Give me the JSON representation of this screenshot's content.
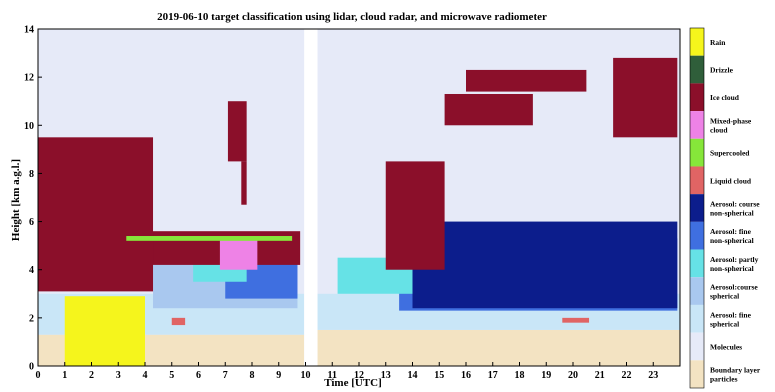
{
  "chart_data": {
    "type": "heatmap",
    "title": "2019-06-10  target classification using lidar, cloud radar, and microwave radiometer",
    "xlabel": "Time [UTC]",
    "ylabel": "Height [km a.g.l.]",
    "xlim": [
      0,
      24
    ],
    "ylim": [
      0,
      14
    ],
    "xticks": [
      "0",
      "1",
      "2",
      "3",
      "4",
      "5",
      "6",
      "7",
      "8",
      "9",
      "10",
      "11",
      "12",
      "13",
      "14",
      "15",
      "16",
      "17",
      "18",
      "19",
      "20",
      "21",
      "22",
      "23"
    ],
    "yticks": [
      "0",
      "2",
      "4",
      "6",
      "8",
      "10",
      "12",
      "14"
    ],
    "data_gap_hours": [
      9.95,
      10.45
    ],
    "legend_position": "right",
    "classes": [
      {
        "lines": [
          "Rain"
        ],
        "color": "#f5f51c"
      },
      {
        "lines": [
          "Drizzle"
        ],
        "color": "#2f5e3a"
      },
      {
        "lines": [
          "Ice cloud"
        ],
        "color": "#8b0f2a"
      },
      {
        "lines": [
          "Mixed-phase",
          "cloud"
        ],
        "color": "#ee82e6"
      },
      {
        "lines": [
          "Supercooled"
        ],
        "color": "#86e63a"
      },
      {
        "lines": [
          "Liquid cloud"
        ],
        "color": "#e06464"
      },
      {
        "lines": [
          "Aerosol: course",
          "non-spherical"
        ],
        "color": "#0c1d8c"
      },
      {
        "lines": [
          "Aerosol: fine",
          "non-spherical"
        ],
        "color": "#3f6fe0"
      },
      {
        "lines": [
          "Aerosol: partly",
          "non-spherical"
        ],
        "color": "#66e2e6"
      },
      {
        "lines": [
          "Aerosol:course",
          "spherical"
        ],
        "color": "#a9c8ef"
      },
      {
        "lines": [
          "Aerosol: fine",
          "spherical"
        ],
        "color": "#c9e6f7"
      },
      {
        "lines": [
          "Molecules"
        ],
        "color": "#e6eaf8"
      },
      {
        "lines": [
          "Boundary layer",
          "particles"
        ],
        "color": "#f3e3c2"
      }
    ],
    "regions": [
      {
        "class": "Boundary layer particles",
        "t": [
          0,
          9.95
        ],
        "h": [
          0,
          1.3
        ]
      },
      {
        "class": "Boundary layer particles",
        "t": [
          10.45,
          24
        ],
        "h": [
          0,
          1.5
        ]
      },
      {
        "class": "Aerosol: fine spherical",
        "t": [
          0,
          9.95
        ],
        "h": [
          1.3,
          3.0
        ]
      },
      {
        "class": "Aerosol: fine spherical",
        "t": [
          10.45,
          24
        ],
        "h": [
          1.5,
          3.0
        ]
      },
      {
        "class": "Aerosol:course spherical",
        "t": [
          4.3,
          9.7
        ],
        "h": [
          2.4,
          5.0
        ]
      },
      {
        "class": "Aerosol: fine non-spherical",
        "t": [
          7.0,
          9.7
        ],
        "h": [
          2.8,
          4.8
        ]
      },
      {
        "class": "Aerosol: partly non-spherical",
        "t": [
          5.8,
          7.8
        ],
        "h": [
          3.5,
          4.8
        ]
      },
      {
        "class": "Aerosol: fine non-spherical",
        "t": [
          13.5,
          23.9
        ],
        "h": [
          2.3,
          5.3
        ]
      },
      {
        "class": "Aerosol: course non-spherical",
        "t": [
          14.0,
          23.9
        ],
        "h": [
          2.4,
          6.0
        ]
      },
      {
        "class": "Aerosol: partly non-spherical",
        "t": [
          11.2,
          14.0
        ],
        "h": [
          3.0,
          4.5
        ]
      },
      {
        "class": "Ice cloud",
        "t": [
          0,
          9.8
        ],
        "h": [
          4.2,
          5.6
        ]
      },
      {
        "class": "Ice cloud",
        "t": [
          0,
          4.3
        ],
        "h": [
          3.1,
          9.5
        ]
      },
      {
        "class": "Ice cloud",
        "t": [
          13.0,
          15.2
        ],
        "h": [
          4.0,
          8.5
        ]
      },
      {
        "class": "Ice cloud",
        "t": [
          15.2,
          18.5
        ],
        "h": [
          10.0,
          11.3
        ]
      },
      {
        "class": "Ice cloud",
        "t": [
          16.0,
          20.5
        ],
        "h": [
          11.4,
          12.3
        ]
      },
      {
        "class": "Ice cloud",
        "t": [
          21.5,
          23.9
        ],
        "h": [
          9.5,
          12.8
        ]
      },
      {
        "class": "Ice cloud",
        "t": [
          7.1,
          7.8
        ],
        "h": [
          8.5,
          11.0
        ]
      },
      {
        "class": "Ice cloud",
        "t": [
          7.6,
          7.8
        ],
        "h": [
          6.7,
          8.5
        ]
      },
      {
        "class": "Mixed-phase cloud",
        "t": [
          6.8,
          8.2
        ],
        "h": [
          4.0,
          5.3
        ]
      },
      {
        "class": "Rain",
        "t": [
          1.0,
          4.0
        ],
        "h": [
          0,
          2.9
        ]
      },
      {
        "class": "Liquid cloud",
        "t": [
          5.0,
          5.5
        ],
        "h": [
          1.7,
          2.0
        ]
      },
      {
        "class": "Liquid cloud",
        "t": [
          19.6,
          20.6
        ],
        "h": [
          1.8,
          2.0
        ]
      },
      {
        "class": "Supercooled",
        "t": [
          3.3,
          9.5
        ],
        "h": [
          5.2,
          5.4
        ]
      }
    ]
  }
}
